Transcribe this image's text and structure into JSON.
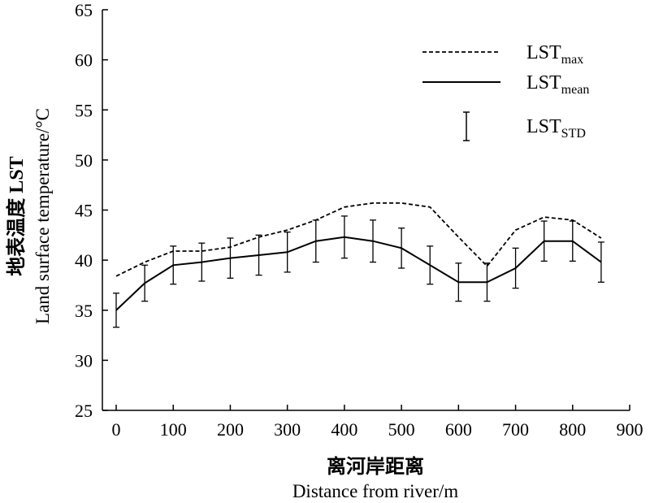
{
  "chart_data": {
    "type": "line",
    "x": [
      0,
      50,
      100,
      150,
      200,
      250,
      300,
      350,
      400,
      450,
      500,
      550,
      600,
      650,
      700,
      750,
      800,
      850
    ],
    "series": [
      {
        "name_base": "LST",
        "name_sub": "max",
        "style": "dashed",
        "values": [
          38.4,
          39.8,
          40.9,
          40.9,
          41.3,
          42.3,
          43.0,
          44.0,
          45.3,
          45.7,
          45.7,
          45.3,
          42.3,
          39.4,
          43.0,
          44.3,
          44.0,
          42.2
        ]
      },
      {
        "name_base": "LST",
        "name_sub": "mean",
        "style": "solid",
        "values": [
          35.0,
          37.7,
          39.5,
          39.8,
          40.2,
          40.5,
          40.8,
          41.9,
          42.3,
          41.9,
          41.2,
          39.5,
          37.8,
          37.8,
          39.2,
          41.9,
          41.9,
          39.8
        ]
      }
    ],
    "error_bars": {
      "name_base": "LST",
      "name_sub": "STD",
      "std": [
        1.7,
        1.8,
        1.9,
        1.9,
        2.0,
        2.0,
        2.0,
        2.1,
        2.1,
        2.1,
        2.0,
        1.9,
        1.9,
        1.9,
        2.0,
        2.0,
        2.0,
        2.0
      ]
    },
    "xlim": [
      -15,
      900
    ],
    "ylim": [
      25,
      65
    ],
    "xticks": [
      0,
      100,
      200,
      300,
      400,
      500,
      600,
      700,
      800,
      900
    ],
    "yticks": [
      25,
      30,
      35,
      40,
      45,
      50,
      55,
      60,
      65
    ],
    "xlabel_cn": "离河岸距离",
    "xlabel_en": "Distance from river/m",
    "ylabel_cn": "地表温度 LST",
    "ylabel_en": "Land surface temperature/°C",
    "legend_position": "top-right",
    "grid": false
  }
}
